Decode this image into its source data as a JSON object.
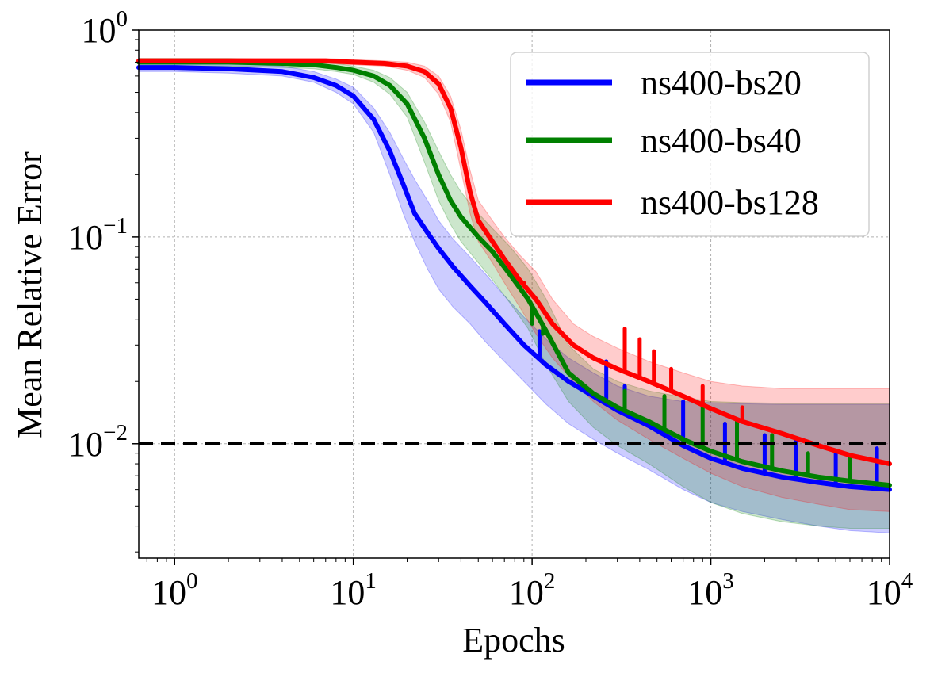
{
  "chart_data": {
    "type": "line",
    "title": "",
    "xlabel": "Epochs",
    "ylabel": "Mean Relative Error",
    "xscale": "log",
    "yscale": "log",
    "xlim": [
      0.63,
      10000
    ],
    "ylim": [
      0.0028,
      1.0
    ],
    "grid": true,
    "legend_position": "top-right",
    "x_ticks": [
      {
        "base": "10",
        "exp": "0",
        "value": 1
      },
      {
        "base": "10",
        "exp": "1",
        "value": 10
      },
      {
        "base": "10",
        "exp": "2",
        "value": 100
      },
      {
        "base": "10",
        "exp": "3",
        "value": 1000
      },
      {
        "base": "10",
        "exp": "4",
        "value": 10000
      }
    ],
    "y_ticks": [
      {
        "base": "10",
        "exp": "0",
        "value": 1.0
      },
      {
        "base": "10",
        "exp": "−1",
        "value": 0.1
      },
      {
        "base": "10",
        "exp": "−2",
        "value": 0.01
      }
    ],
    "reference_line": {
      "y": 0.01,
      "style": "dashed",
      "color": "#000000"
    },
    "series": [
      {
        "name": "ns400-bs20",
        "color": "#0000ff",
        "x": [
          0.63,
          1,
          2,
          4,
          6,
          8,
          10,
          13,
          16,
          19,
          22,
          26,
          30,
          36,
          45,
          55,
          70,
          90,
          120,
          160,
          220,
          300,
          450,
          700,
          1000,
          1500,
          2500,
          4000,
          6000,
          10000
        ],
        "values": [
          0.66,
          0.66,
          0.65,
          0.63,
          0.59,
          0.54,
          0.48,
          0.37,
          0.26,
          0.18,
          0.13,
          0.105,
          0.088,
          0.072,
          0.058,
          0.048,
          0.038,
          0.03,
          0.024,
          0.02,
          0.017,
          0.0145,
          0.0122,
          0.0098,
          0.0085,
          0.0076,
          0.0069,
          0.0065,
          0.0062,
          0.006
        ],
        "lower": [
          0.63,
          0.63,
          0.62,
          0.6,
          0.56,
          0.5,
          0.44,
          0.32,
          0.2,
          0.13,
          0.095,
          0.07,
          0.056,
          0.046,
          0.038,
          0.031,
          0.025,
          0.02,
          0.0155,
          0.0125,
          0.0105,
          0.009,
          0.0075,
          0.006,
          0.0052,
          0.0047,
          0.0043,
          0.004,
          0.0038,
          0.0037
        ],
        "upper": [
          0.7,
          0.7,
          0.69,
          0.67,
          0.63,
          0.58,
          0.53,
          0.42,
          0.32,
          0.24,
          0.19,
          0.15,
          0.12,
          0.098,
          0.08,
          0.066,
          0.052,
          0.041,
          0.032,
          0.026,
          0.022,
          0.019,
          0.017,
          0.016,
          0.0158,
          0.0156,
          0.0155,
          0.0155,
          0.0155,
          0.0155
        ],
        "spikes": [
          [
            110,
            0.035
          ],
          [
            260,
            0.025
          ],
          [
            330,
            0.019
          ],
          [
            700,
            0.016
          ],
          [
            1200,
            0.0125
          ],
          [
            2000,
            0.011
          ],
          [
            3000,
            0.0105
          ],
          [
            5000,
            0.009
          ],
          [
            8500,
            0.0095
          ]
        ]
      },
      {
        "name": "ns400-bs40",
        "color": "#008000",
        "x": [
          0.63,
          1,
          2,
          4,
          6,
          8,
          10,
          13,
          16,
          20,
          25,
          30,
          35,
          40,
          50,
          60,
          75,
          95,
          120,
          160,
          220,
          300,
          450,
          700,
          1000,
          1500,
          2500,
          4000,
          6000,
          10000
        ],
        "values": [
          0.7,
          0.7,
          0.7,
          0.69,
          0.68,
          0.66,
          0.64,
          0.6,
          0.54,
          0.44,
          0.3,
          0.2,
          0.15,
          0.125,
          0.1,
          0.085,
          0.066,
          0.05,
          0.035,
          0.022,
          0.0175,
          0.015,
          0.0128,
          0.0105,
          0.0092,
          0.0082,
          0.0074,
          0.0069,
          0.0066,
          0.0063
        ],
        "lower": [
          0.67,
          0.67,
          0.67,
          0.66,
          0.65,
          0.63,
          0.61,
          0.56,
          0.49,
          0.38,
          0.23,
          0.15,
          0.115,
          0.095,
          0.075,
          0.062,
          0.048,
          0.036,
          0.024,
          0.016,
          0.012,
          0.0098,
          0.008,
          0.0062,
          0.0052,
          0.0046,
          0.0042,
          0.004,
          0.0039,
          0.0039
        ],
        "upper": [
          0.73,
          0.73,
          0.73,
          0.72,
          0.71,
          0.69,
          0.67,
          0.64,
          0.59,
          0.5,
          0.36,
          0.26,
          0.2,
          0.165,
          0.13,
          0.11,
          0.09,
          0.07,
          0.05,
          0.03,
          0.023,
          0.02,
          0.018,
          0.0168,
          0.016,
          0.0158,
          0.0157,
          0.0157,
          0.0157,
          0.0157
        ],
        "spikes": [
          [
            100,
            0.038
          ],
          [
            115,
            0.034
          ],
          [
            330,
            0.018
          ],
          [
            550,
            0.017
          ],
          [
            900,
            0.016
          ],
          [
            1400,
            0.013
          ],
          [
            2200,
            0.011
          ],
          [
            3500,
            0.009
          ],
          [
            6000,
            0.0085
          ]
        ]
      },
      {
        "name": "ns400-bs128",
        "color": "#ff0000",
        "x": [
          0.63,
          1,
          2,
          4,
          7,
          10,
          15,
          20,
          25,
          30,
          35,
          40,
          45,
          50,
          60,
          70,
          85,
          105,
          130,
          170,
          220,
          300,
          450,
          700,
          1000,
          1500,
          2500,
          4000,
          6000,
          10000
        ],
        "values": [
          0.71,
          0.71,
          0.71,
          0.71,
          0.71,
          0.7,
          0.69,
          0.67,
          0.63,
          0.55,
          0.42,
          0.27,
          0.165,
          0.12,
          0.095,
          0.078,
          0.062,
          0.05,
          0.038,
          0.03,
          0.026,
          0.023,
          0.02,
          0.017,
          0.0148,
          0.0128,
          0.0112,
          0.0098,
          0.0088,
          0.008
        ],
        "lower": [
          0.69,
          0.69,
          0.69,
          0.69,
          0.69,
          0.68,
          0.67,
          0.64,
          0.59,
          0.49,
          0.36,
          0.21,
          0.13,
          0.095,
          0.075,
          0.06,
          0.046,
          0.034,
          0.026,
          0.02,
          0.016,
          0.013,
          0.0105,
          0.0085,
          0.0072,
          0.0062,
          0.0055,
          0.0051,
          0.0048,
          0.0047
        ],
        "upper": [
          0.73,
          0.73,
          0.73,
          0.73,
          0.73,
          0.72,
          0.71,
          0.7,
          0.67,
          0.6,
          0.48,
          0.33,
          0.21,
          0.15,
          0.12,
          0.1,
          0.082,
          0.068,
          0.05,
          0.038,
          0.033,
          0.029,
          0.025,
          0.022,
          0.02,
          0.019,
          0.0185,
          0.0185,
          0.0185,
          0.0185
        ],
        "spikes": [
          [
            90,
            0.06
          ],
          [
            330,
            0.036
          ],
          [
            400,
            0.032
          ],
          [
            480,
            0.028
          ],
          [
            600,
            0.023
          ],
          [
            900,
            0.019
          ],
          [
            1500,
            0.015
          ]
        ]
      }
    ]
  }
}
